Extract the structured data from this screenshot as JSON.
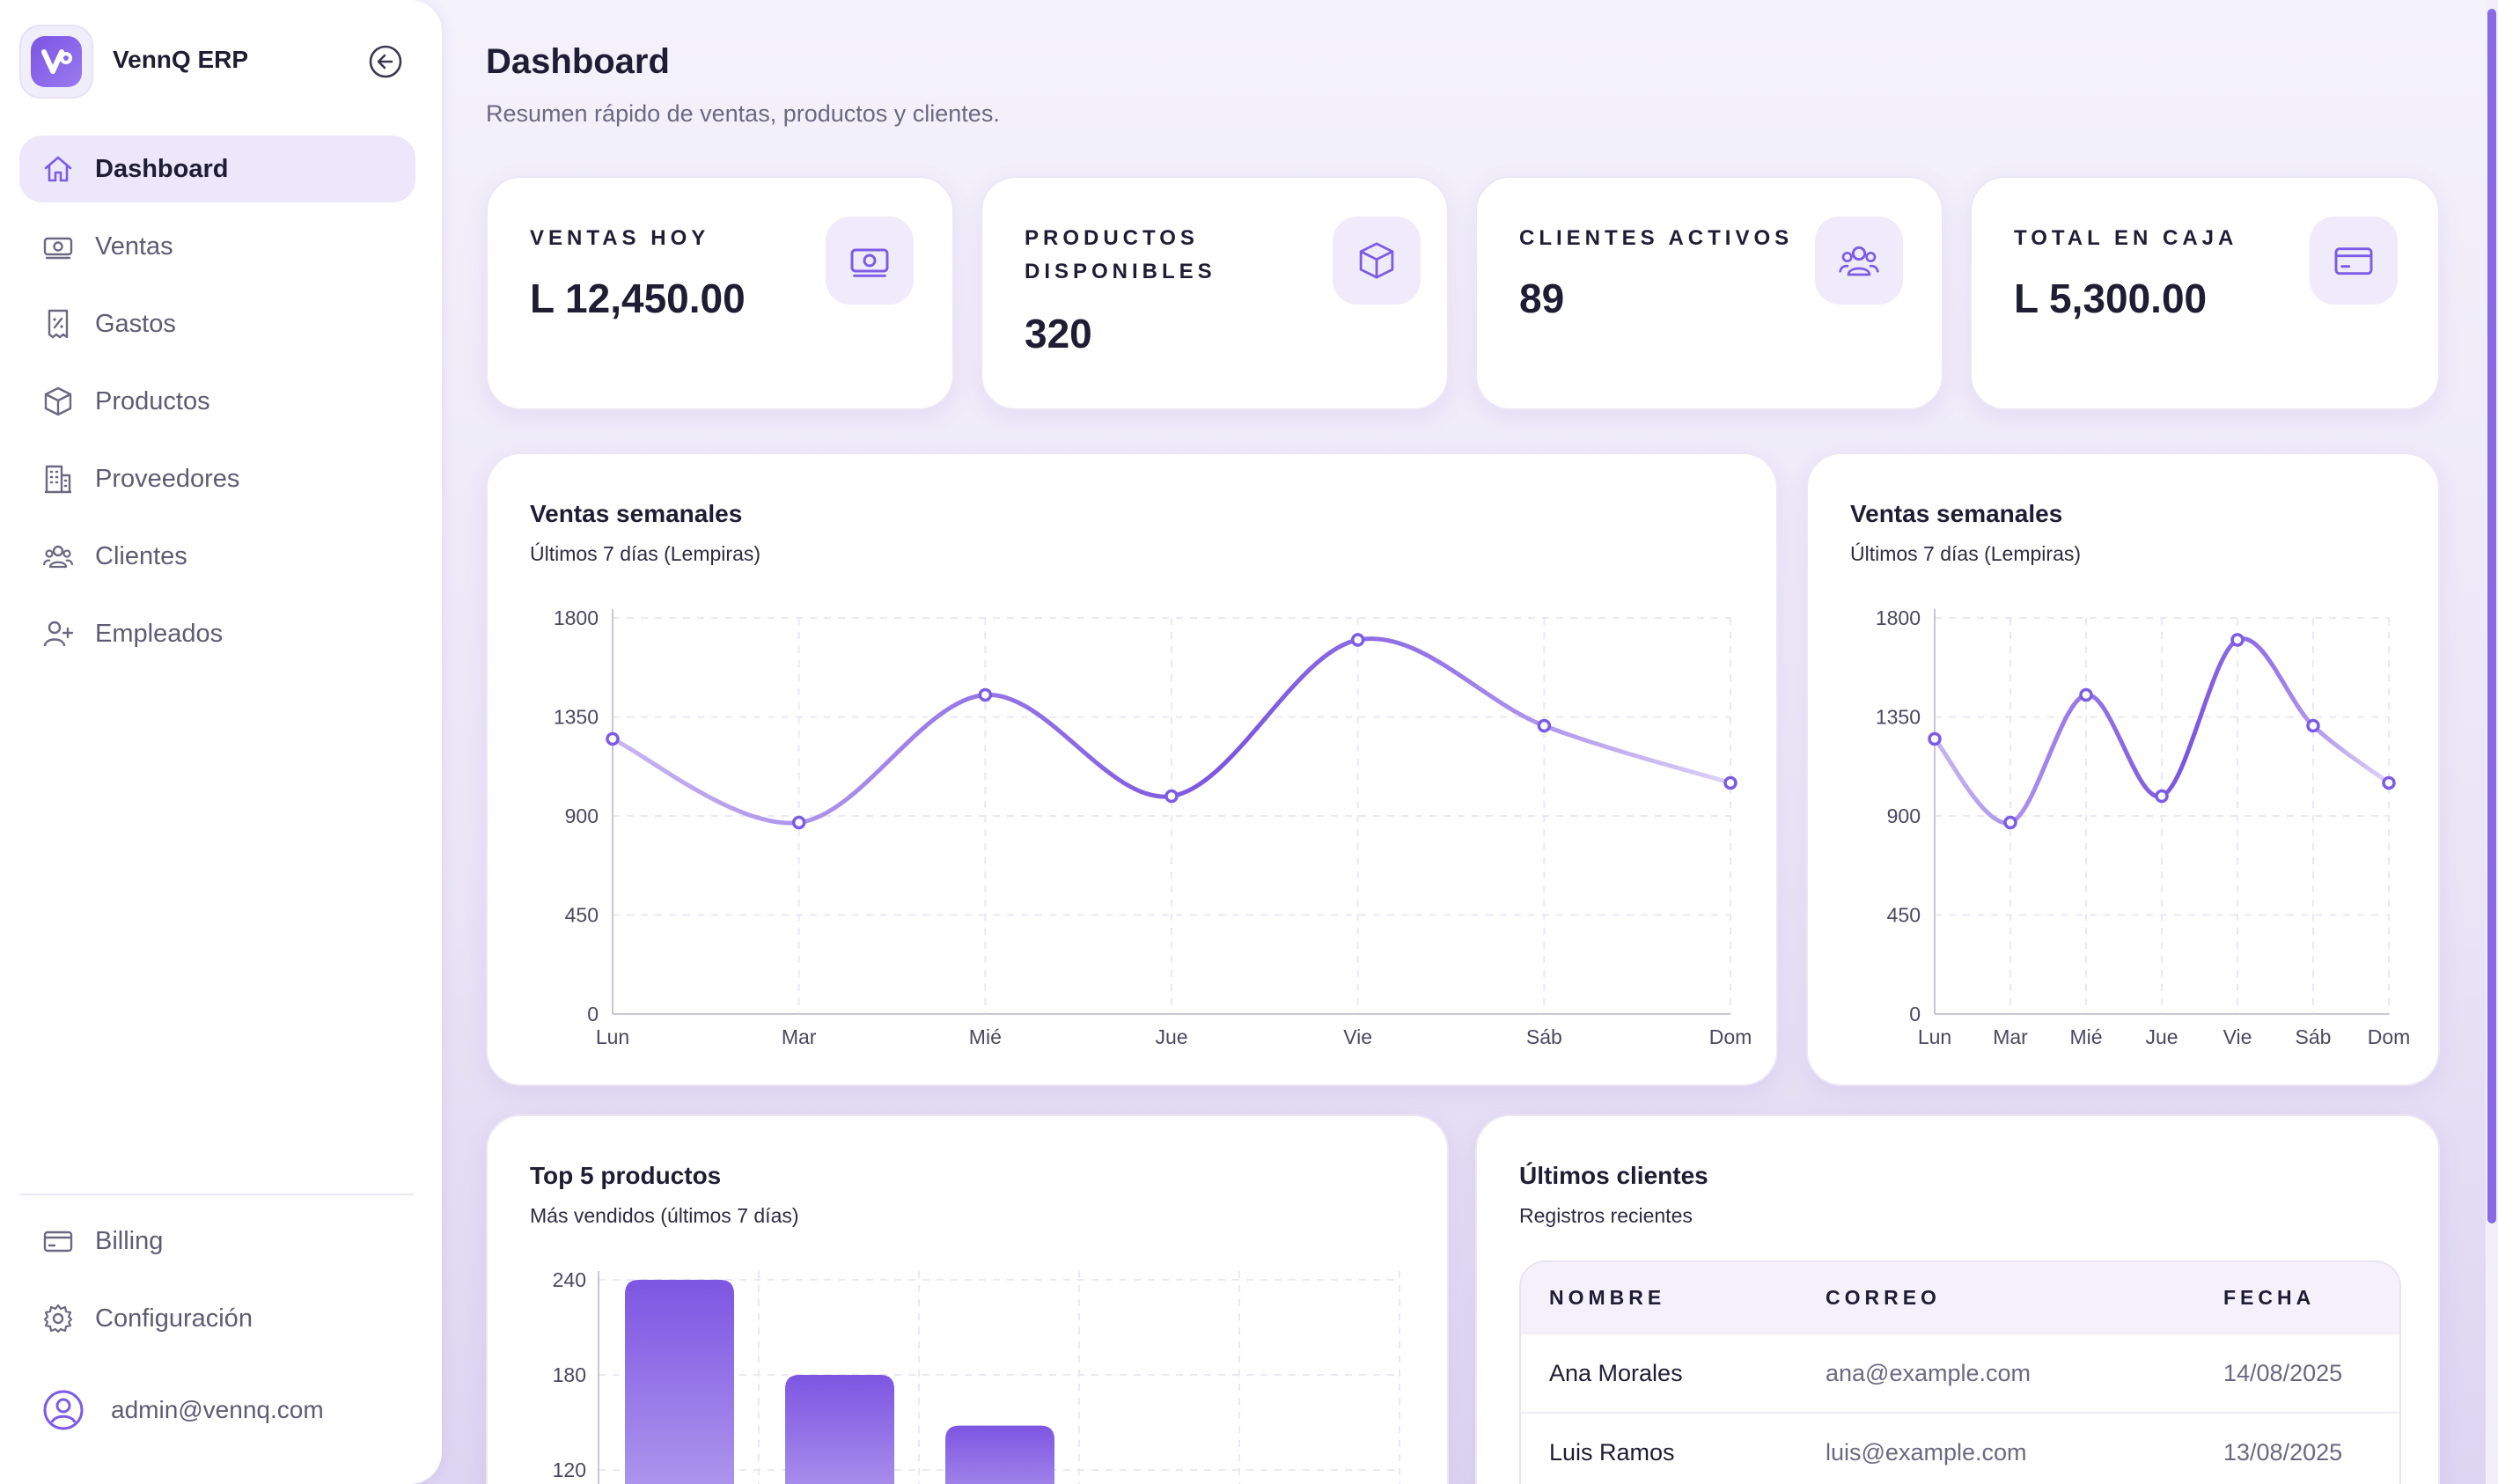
{
  "app": {
    "name": "VennQ ERP",
    "accent": "#7c5ce4",
    "accent_light": "#ece7fa"
  },
  "sidebar": {
    "items": [
      {
        "label": "Dashboard",
        "icon": "home-icon",
        "active": true
      },
      {
        "label": "Ventas",
        "icon": "banknote-icon"
      },
      {
        "label": "Gastos",
        "icon": "receipt-icon"
      },
      {
        "label": "Productos",
        "icon": "box-icon"
      },
      {
        "label": "Proveedores",
        "icon": "building-icon"
      },
      {
        "label": "Clientes",
        "icon": "users-icon"
      },
      {
        "label": "Empleados",
        "icon": "user-plus-icon"
      }
    ],
    "bottom_items": [
      {
        "label": "Billing",
        "icon": "credit-card-icon"
      },
      {
        "label": "Configuración",
        "icon": "gear-icon"
      }
    ],
    "user_email": "admin@vennq.com"
  },
  "header": {
    "title": "Dashboard",
    "subtitle": "Resumen rápido de ventas, productos y clientes."
  },
  "stats": [
    {
      "label": "VENTAS HOY",
      "value": "L 12,450.00",
      "icon": "banknote-icon"
    },
    {
      "label": "PRODUCTOS DISPONIBLES",
      "label_line1": "PRODUCTOS",
      "label_line2": "DISPONIBLES",
      "value": "320",
      "icon": "box-icon"
    },
    {
      "label": "CLIENTES ACTIVOS",
      "value": "89",
      "icon": "users-icon"
    },
    {
      "label": "TOTAL EN CAJA",
      "value": "L 5,300.00",
      "icon": "credit-card-icon"
    }
  ],
  "sales_chart": {
    "title": "Ventas semanales",
    "subtitle": "Últimos 7 días (Lempiras)"
  },
  "sales_chart_small": {
    "title": "Ventas semanales",
    "subtitle": "Últimos 7 días (Lempiras)"
  },
  "top_products": {
    "title": "Top 5 productos",
    "subtitle": "Más vendidos (últimos 7 días)"
  },
  "clients": {
    "title": "Últimos clientes",
    "subtitle": "Registros recientes",
    "columns": [
      "NOMBRE",
      "CORREO",
      "FECHA"
    ],
    "rows": [
      {
        "name": "Ana Morales",
        "email": "ana@example.com",
        "date": "14/08/2025"
      },
      {
        "name": "Luis Ramos",
        "email": "luis@example.com",
        "date": "13/08/2025"
      }
    ]
  },
  "chart_data": [
    {
      "type": "line",
      "title": "Ventas semanales",
      "subtitle": "Últimos 7 días (Lempiras)",
      "categories": [
        "Lun",
        "Mar",
        "Mié",
        "Jue",
        "Vie",
        "Sáb",
        "Dom"
      ],
      "values": [
        1250,
        870,
        1450,
        990,
        1700,
        1310,
        1050
      ],
      "yticks": [
        0,
        450,
        900,
        1350,
        1800
      ],
      "ylim": [
        0,
        1800
      ],
      "grid": true
    },
    {
      "type": "line",
      "title": "Ventas semanales",
      "subtitle": "Últimos 7 días (Lempiras)",
      "categories": [
        "Lun",
        "Mar",
        "Mié",
        "Jue",
        "Vie",
        "Sáb",
        "Dom"
      ],
      "values": [
        1250,
        870,
        1450,
        990,
        1700,
        1310,
        1050
      ],
      "yticks": [
        0,
        450,
        900,
        1350,
        1800
      ],
      "ylim": [
        0,
        1800
      ],
      "grid": true
    },
    {
      "type": "bar",
      "title": "Top 5 productos",
      "subtitle": "Más vendidos (últimos 7 días)",
      "values": [
        240,
        180,
        148
      ],
      "yticks_visible": [
        120,
        180,
        240
      ],
      "ylim_visible": [
        120,
        240
      ],
      "grid": true
    }
  ]
}
